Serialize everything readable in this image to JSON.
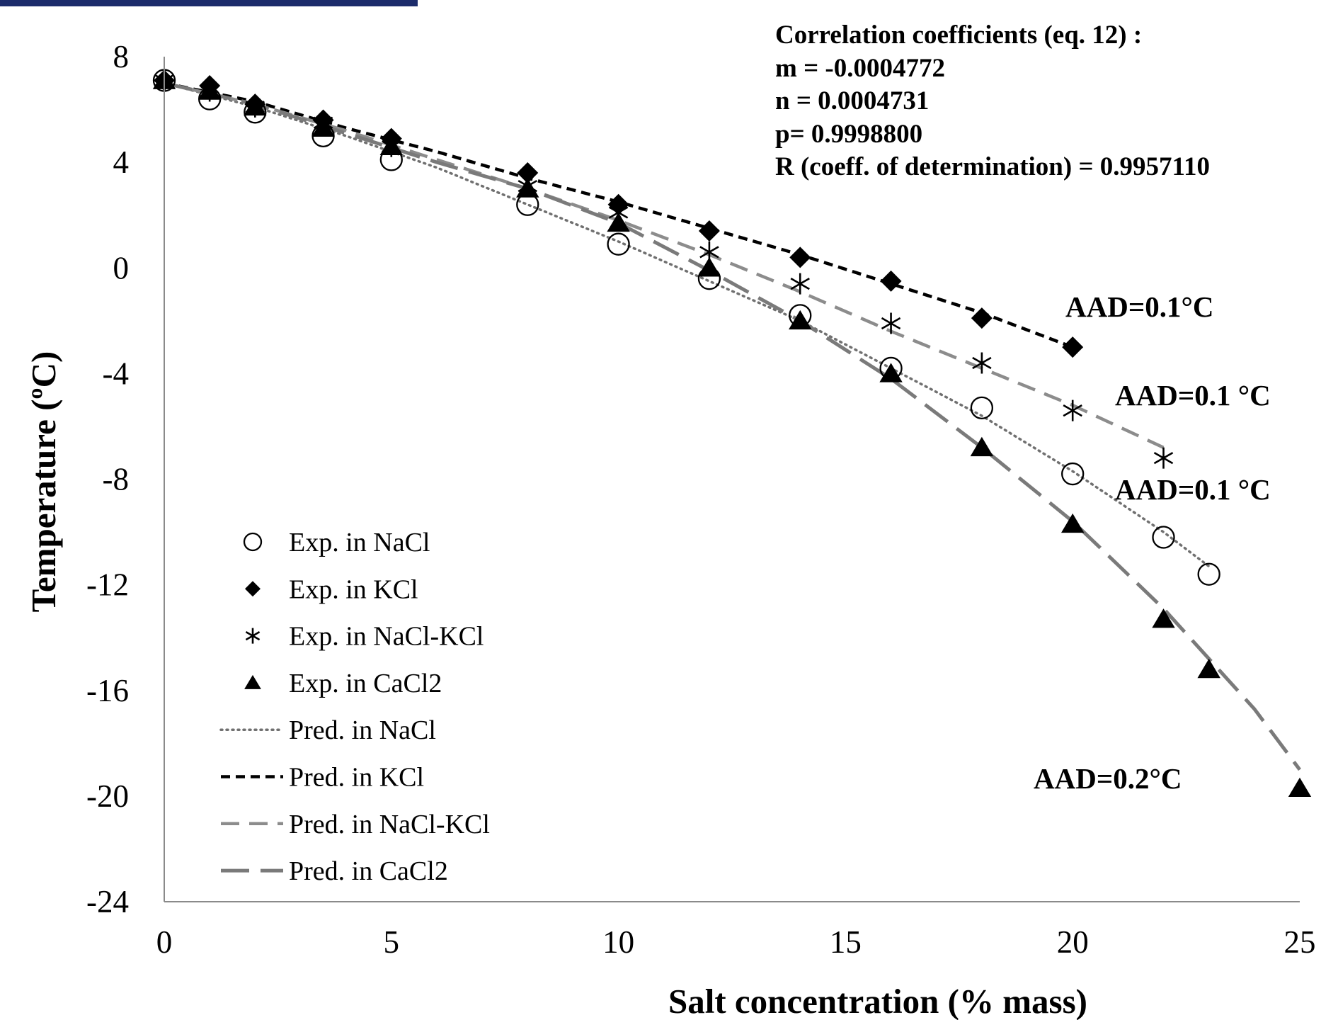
{
  "chart_data": {
    "type": "scatter",
    "xlabel": "Salt concentration  (% mass)",
    "ylabel": "Temperature (ºC)",
    "xlim": [
      0,
      25
    ],
    "ylim": [
      -24,
      8
    ],
    "x_ticks": [
      "0",
      "5",
      "10",
      "15",
      "20",
      "25"
    ],
    "y_ticks": [
      "8",
      "4",
      "0",
      "-4",
      "-8",
      "-12",
      "-16",
      "-20",
      "-24"
    ],
    "grid": false,
    "legend_position": "bottom-left",
    "annotation": {
      "lines": [
        "Correlation  coefficients (eq. 12) :",
        "m = -0.0004772",
        "n = 0.0004731",
        "p= 0.9998800",
        "R (coeff. of determination) = 0.9957110"
      ]
    },
    "aad_labels": {
      "kcl": "AAD=0.1°C",
      "nacl_kcl": "AAD=0.1 °C",
      "nacl": "AAD=0.1 °C",
      "cacl2": "AAD=0.2°C"
    },
    "series": [
      {
        "name": "Exp. in NaCl",
        "kind": "experimental",
        "marker": "circle",
        "x": [
          0,
          1,
          2,
          3.5,
          5,
          8,
          10,
          12,
          14,
          16,
          18,
          20,
          22,
          23
        ],
        "y": [
          7.1,
          6.4,
          5.9,
          5.0,
          4.1,
          2.4,
          0.9,
          -0.4,
          -1.8,
          -3.8,
          -5.3,
          -7.8,
          -10.2,
          -11.6
        ]
      },
      {
        "name": "Exp. in KCl",
        "kind": "experimental",
        "marker": "diamond",
        "x": [
          0,
          1,
          2,
          3.5,
          5,
          8,
          10,
          12,
          14,
          16,
          18,
          20
        ],
        "y": [
          7.1,
          6.9,
          6.2,
          5.6,
          4.9,
          3.6,
          2.4,
          1.4,
          0.4,
          -0.5,
          -1.9,
          -3.0
        ]
      },
      {
        "name": "Exp. in NaCl-KCl",
        "kind": "experimental",
        "marker": "asterisk",
        "x": [
          0,
          1,
          2,
          3.5,
          5,
          8,
          10,
          12,
          14,
          16,
          18,
          20,
          22
        ],
        "y": [
          7.1,
          6.7,
          6.1,
          5.5,
          4.6,
          3.1,
          2.1,
          0.6,
          -0.6,
          -2.1,
          -3.6,
          -5.4,
          -7.2
        ]
      },
      {
        "name": "Exp. in  CaCl2",
        "kind": "experimental",
        "marker": "triangle",
        "x": [
          0,
          1,
          2,
          3.5,
          5,
          8,
          10,
          12,
          14,
          16,
          18,
          20,
          22,
          23,
          25
        ],
        "y": [
          7.1,
          6.7,
          6.1,
          5.3,
          4.6,
          3.0,
          1.7,
          0.0,
          -2.0,
          -4.0,
          -6.8,
          -9.7,
          -13.3,
          -15.2,
          -19.7
        ]
      },
      {
        "name": "Pred. in NaCl",
        "kind": "predicted",
        "dash": "dotted",
        "color": "#707070",
        "x": [
          0,
          2,
          4,
          6,
          8,
          10,
          12,
          14,
          16,
          18,
          20,
          22,
          23
        ],
        "y": [
          7.0,
          6.1,
          5.0,
          3.8,
          2.4,
          1.0,
          -0.5,
          -2.0,
          -3.8,
          -5.6,
          -7.7,
          -10.0,
          -11.3
        ]
      },
      {
        "name": "Pred. in KCl",
        "kind": "predicted",
        "dash": "short-dash",
        "color": "#000000",
        "x": [
          0,
          2,
          4,
          6,
          8,
          10,
          12,
          14,
          16,
          18,
          20
        ],
        "y": [
          7.0,
          6.3,
          5.3,
          4.4,
          3.4,
          2.5,
          1.5,
          0.5,
          -0.6,
          -1.7,
          -3.0
        ]
      },
      {
        "name": "Pred. in NaCl-KCl",
        "kind": "predicted",
        "dash": "dash",
        "color": "#8c8c8c",
        "x": [
          0,
          2,
          4,
          6,
          8,
          10,
          12,
          14,
          16,
          18,
          20,
          22
        ],
        "y": [
          7.0,
          6.2,
          5.2,
          4.1,
          3.0,
          1.8,
          0.5,
          -0.9,
          -2.4,
          -3.8,
          -5.2,
          -6.8
        ]
      },
      {
        "name": "Pred. in CaCl2",
        "kind": "predicted",
        "dash": "long-dash",
        "color": "#7a7a7a",
        "x": [
          0,
          2,
          4,
          6,
          8,
          10,
          12,
          14,
          16,
          18,
          20,
          22,
          24,
          25
        ],
        "y": [
          7.0,
          6.2,
          5.1,
          4.0,
          3.0,
          1.7,
          -0.1,
          -2.0,
          -4.2,
          -6.8,
          -9.6,
          -12.9,
          -16.7,
          -19.0
        ]
      }
    ]
  }
}
